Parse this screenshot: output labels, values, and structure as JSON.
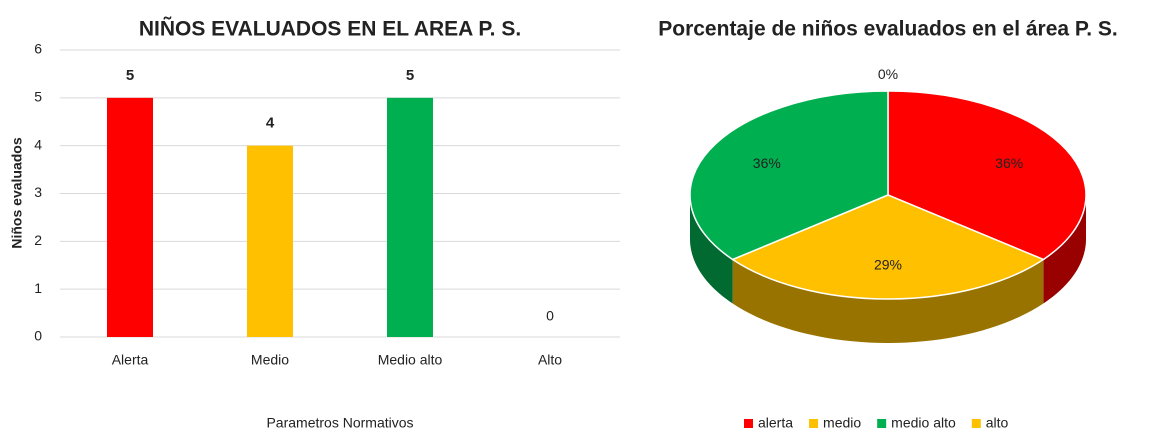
{
  "chart_data": [
    {
      "type": "bar",
      "title": "NIÑOS EVALUADOS EN EL AREA  P. S.",
      "y_label": "Niños evaluados",
      "x_label": "Parametros Normativos",
      "categories": [
        "Alerta",
        "Medio",
        "Medio alto",
        "Alto"
      ],
      "values": [
        5,
        4,
        5,
        0
      ],
      "colors": [
        "#ff0000",
        "#ffc000",
        "#00b050",
        "#ffc000"
      ],
      "ylim": [
        0,
        6
      ],
      "yticks": [
        0,
        1,
        2,
        3,
        4,
        5,
        6
      ],
      "grid": true
    },
    {
      "type": "pie",
      "title": "Porcentaje de niños evaluados en el área P. S.",
      "categories": [
        "alerta",
        "medio",
        "medio alto",
        "alto"
      ],
      "values": [
        36,
        29,
        36,
        0
      ],
      "value_labels": [
        "36%",
        "29%",
        "36%",
        "0%"
      ],
      "colors": [
        "#ff0000",
        "#ffc000",
        "#00b050",
        "#ffc000"
      ],
      "legend": "bottom"
    }
  ]
}
